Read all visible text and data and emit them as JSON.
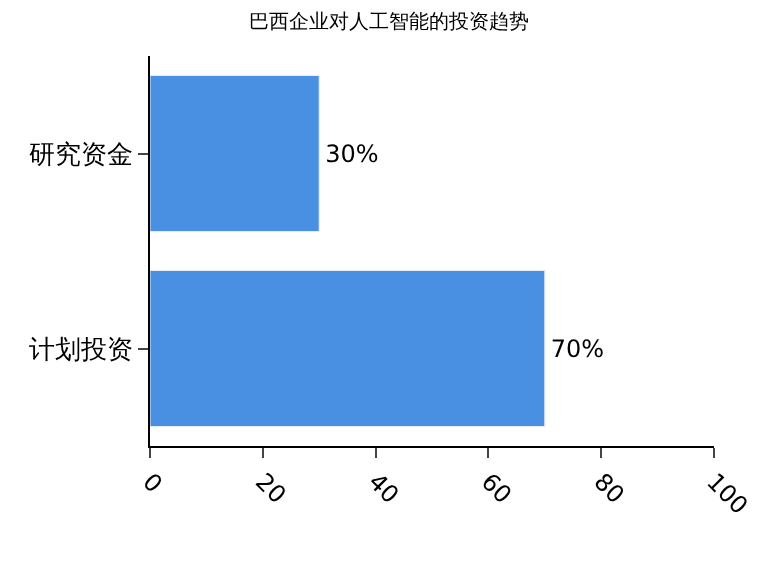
{
  "chart_data": {
    "type": "bar",
    "orientation": "horizontal",
    "title": "巴西企业对人工智能的投资趋势",
    "categories": [
      "研究资金",
      "计划投资"
    ],
    "values": [
      30,
      70
    ],
    "color": "#4a90e2",
    "value_labels": [
      "30%",
      "70%"
    ],
    "xlim": [
      0,
      100
    ],
    "xticks": [
      0,
      20,
      40,
      60,
      80,
      100
    ]
  }
}
